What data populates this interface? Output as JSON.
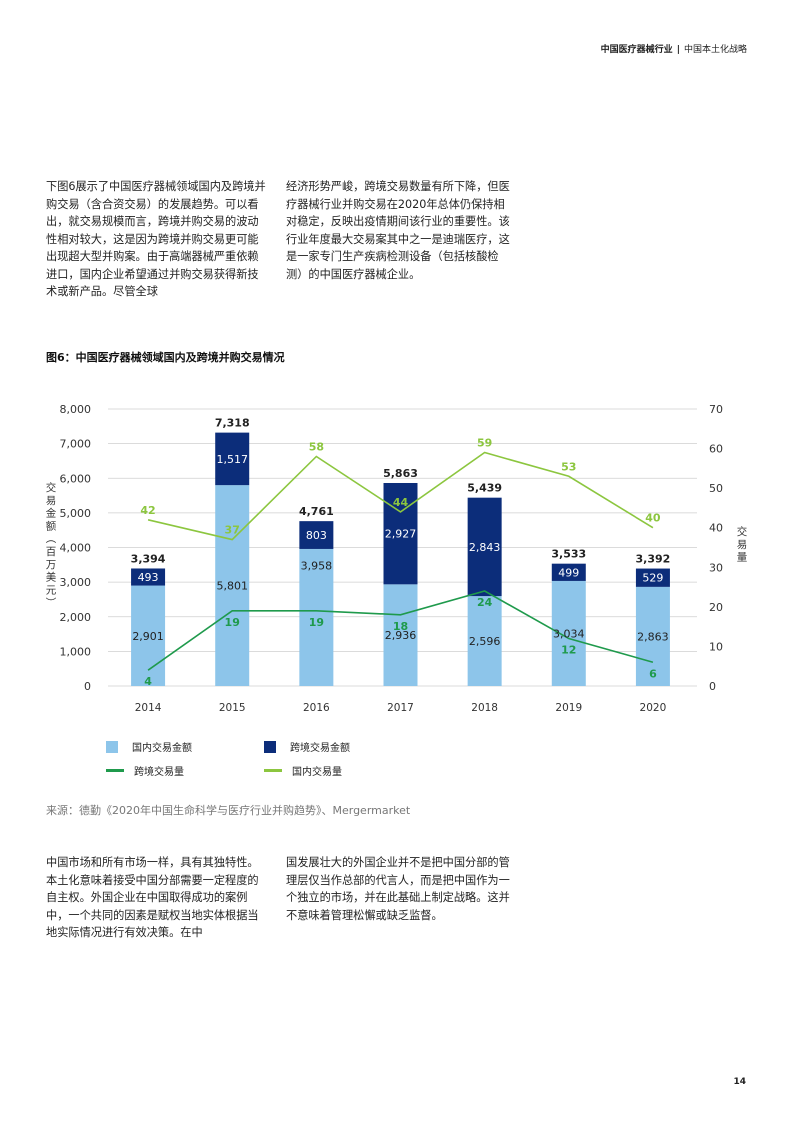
{
  "header": {
    "left": "中国医疗器械行业",
    "separator": "|",
    "right": "中国本土化战略"
  },
  "intro": {
    "col1": "下图6展示了中国医疗器械领域国内及跨境并购交易（含合资交易）的发展趋势。可以看出，就交易规模而言，跨境并购交易的波动性相对较大，这是因为跨境并购交易更可能出现超大型并购案。由于高端器械严重依赖进口，国内企业希望通过并购交易获得新技术或新产品。尽管全球",
    "col2": "经济形势严峻，跨境交易数量有所下降，但医疗器械行业并购交易在2020年总体仍保持相对稳定，反映出疫情期间该行业的重要性。该行业年度最大交易案其中之一是迪瑞医疗，这是一家专门生产疾病检测设备（包括核酸检测）的中国医疗器械企业。"
  },
  "figure_title": "图6：中国医疗器械领域国内及跨境并购交易情况",
  "chart_data": {
    "type": "bar",
    "stacked": true,
    "categories": [
      "2014",
      "2015",
      "2016",
      "2017",
      "2018",
      "2019",
      "2020"
    ],
    "ylabel_left": "交易金额（百万美元）",
    "ylabel_right": "交易量",
    "ylim_left": [
      0,
      8000
    ],
    "ylim_right": [
      0,
      70
    ],
    "yticks_left": [
      "0",
      "1,000",
      "2,000",
      "3,000",
      "4,000",
      "5,000",
      "6,000",
      "7,000",
      "8,000"
    ],
    "yticks_right": [
      "0",
      "10",
      "20",
      "30",
      "40",
      "50",
      "60",
      "70"
    ],
    "grid": true,
    "series": [
      {
        "name": "国内交易金额",
        "kind": "bar",
        "color": "#8dc5ea",
        "values": [
          2901,
          5801,
          3958,
          2936,
          2596,
          3034,
          2863
        ],
        "labels": [
          "2,901",
          "5,801",
          "3,958",
          "2,936",
          "2,596",
          "3,034",
          "2,863"
        ]
      },
      {
        "name": "跨境交易金额",
        "kind": "bar",
        "color": "#0c2d7a",
        "values": [
          493,
          1517,
          803,
          2927,
          2843,
          499,
          529
        ],
        "labels": [
          "493",
          "1,517",
          "803",
          "2,927",
          "2,843",
          "499",
          "529"
        ]
      },
      {
        "name": "跨境交易量",
        "kind": "line",
        "axis": "right",
        "color": "#1f9a4c",
        "values": [
          4,
          19,
          19,
          18,
          24,
          12,
          6
        ]
      },
      {
        "name": "国内交易量",
        "kind": "line",
        "axis": "right",
        "color": "#8cc63f",
        "values": [
          42,
          37,
          58,
          44,
          59,
          53,
          40
        ]
      }
    ],
    "totals": [
      "3,394",
      "7,318",
      "4,761",
      "5,863",
      "5,439",
      "3,533",
      "3,392"
    ],
    "legend_position": "bottom",
    "colors": {
      "grid": "#cfcfcf",
      "axis_text": "#333333",
      "label_dark": "#222222",
      "label_light": "#ffffff"
    }
  },
  "source": "来源：德勤《2020年中国生命科学与医疗行业并购趋势》、Mergermarket",
  "body": {
    "col1": "中国市场和所有市场一样，具有其独特性。本土化意味着接受中国分部需要一定程度的自主权。外国企业在中国取得成功的案例中，一个共同的因素是赋权当地实体根据当地实际情况进行有效决策。在中",
    "col2": "国发展壮大的外国企业并不是把中国分部的管理层仅当作总部的代言人，而是把中国作为一个独立的市场，并在此基础上制定战略。这并不意味着管理松懈或缺乏监督。"
  },
  "page_number": "14"
}
